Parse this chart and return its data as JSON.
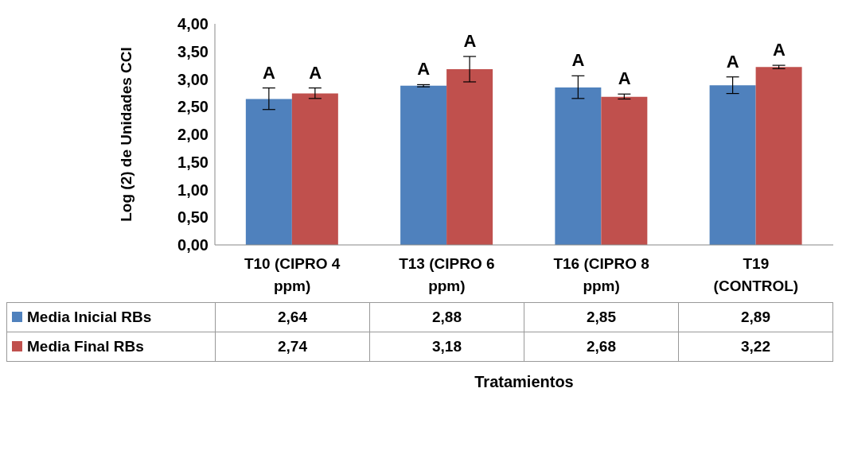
{
  "chart_data": {
    "type": "bar",
    "ylabel": "Log (2) de Unidades CCI",
    "xlabel": "Tratamientos",
    "categories": [
      "T10 (CIPRO 4 ppm)",
      "T13 (CIPRO 6 ppm)",
      "T16 (CIPRO 8 ppm)",
      "T19 (CONTROL)"
    ],
    "series": [
      {
        "name": "Media Inicial RBs",
        "color": "#4f81bd",
        "values": [
          2.64,
          2.88,
          2.85,
          2.89
        ],
        "value_labels": [
          "2,64",
          "2,88",
          "2,85",
          "2,89"
        ],
        "errors": [
          [
            2.45,
            2.84
          ],
          [
            2.86,
            2.9
          ],
          [
            2.65,
            3.06
          ],
          [
            2.74,
            3.04
          ]
        ]
      },
      {
        "name": "Media Final RBs",
        "color": "#c0504d",
        "values": [
          2.74,
          3.18,
          2.68,
          3.22
        ],
        "value_labels": [
          "2,74",
          "3,18",
          "2,68",
          "3,22"
        ],
        "errors": [
          [
            2.65,
            2.84
          ],
          [
            2.95,
            3.41
          ],
          [
            2.64,
            2.73
          ],
          [
            3.19,
            3.25
          ]
        ]
      }
    ],
    "ylim": [
      0,
      4
    ],
    "yticks": [
      {
        "value": 0,
        "label": "0,00"
      },
      {
        "value": 0.5,
        "label": "0,50"
      },
      {
        "value": 1,
        "label": "1,00"
      },
      {
        "value": 1.5,
        "label": "1,50"
      },
      {
        "value": 2,
        "label": "2,00"
      },
      {
        "value": 2.5,
        "label": "2,50"
      },
      {
        "value": 3,
        "label": "3,00"
      },
      {
        "value": 3.5,
        "label": "3,50"
      },
      {
        "value": 4,
        "label": "4,00"
      }
    ],
    "annotations": [
      "A",
      "A",
      "A",
      "A",
      "A",
      "A",
      "A",
      "A"
    ],
    "legend": "bottom",
    "grid": false
  }
}
